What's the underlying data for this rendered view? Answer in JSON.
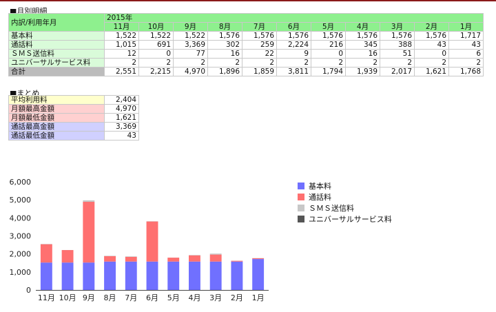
{
  "monthly": {
    "title": "■月別明細",
    "corner_label": "内訳/利用年月",
    "year_label": "2015年",
    "months": [
      "11月",
      "10月",
      "9月",
      "8月",
      "7月",
      "6月",
      "5月",
      "4月",
      "3月",
      "2月",
      "1月"
    ],
    "rows": [
      {
        "label": "基本料",
        "values": [
          "1,522",
          "1,522",
          "1,522",
          "1,576",
          "1,576",
          "1,576",
          "1,576",
          "1,576",
          "1,576",
          "1,576",
          "1,717"
        ]
      },
      {
        "label": "通話料",
        "values": [
          "1,015",
          "691",
          "3,369",
          "302",
          "259",
          "2,224",
          "216",
          "345",
          "388",
          "43",
          "43"
        ]
      },
      {
        "label": "ＳＭＳ送信料",
        "values": [
          "12",
          "0",
          "77",
          "16",
          "22",
          "9",
          "0",
          "16",
          "51",
          "0",
          "6"
        ]
      },
      {
        "label": "ユニバーサルサービス料",
        "values": [
          "2",
          "2",
          "2",
          "2",
          "2",
          "2",
          "2",
          "2",
          "2",
          "2",
          "2"
        ]
      }
    ],
    "total": {
      "label": "合計",
      "values": [
        "2,551",
        "2,215",
        "4,970",
        "1,896",
        "1,859",
        "3,811",
        "1,794",
        "1,939",
        "2,017",
        "1,621",
        "1,768"
      ]
    }
  },
  "summary": {
    "title": "■まとめ",
    "rows": [
      {
        "label": "平均利用料",
        "value": "2,404"
      },
      {
        "label": "月額最高金額",
        "value": "4,970"
      },
      {
        "label": "月額最低金額",
        "value": "1,621"
      },
      {
        "label": "通話最高金額",
        "value": "3,369"
      },
      {
        "label": "通話最低金額",
        "value": "43"
      }
    ]
  },
  "chart_data": {
    "type": "bar",
    "stacked": true,
    "categories": [
      "11月",
      "10月",
      "9月",
      "8月",
      "7月",
      "6月",
      "5月",
      "4月",
      "3月",
      "2月",
      "1月"
    ],
    "series": [
      {
        "name": "基本料",
        "color": "#7070ff",
        "values": [
          1522,
          1522,
          1522,
          1576,
          1576,
          1576,
          1576,
          1576,
          1576,
          1576,
          1717
        ]
      },
      {
        "name": "通話料",
        "color": "#ff7070",
        "values": [
          1015,
          691,
          3369,
          302,
          259,
          2224,
          216,
          345,
          388,
          43,
          43
        ]
      },
      {
        "name": "ＳＭＳ送信料",
        "color": "#c8c8c8",
        "values": [
          12,
          0,
          77,
          16,
          22,
          9,
          0,
          16,
          51,
          0,
          6
        ]
      },
      {
        "name": "ユニバーサルサービス料",
        "color": "#555555",
        "values": [
          2,
          2,
          2,
          2,
          2,
          2,
          2,
          2,
          2,
          2,
          2
        ]
      }
    ],
    "y_ticks": [
      "0",
      "1,000",
      "2,000",
      "3,000",
      "4,000",
      "5,000",
      "6,000"
    ],
    "ylim": [
      0,
      6000
    ],
    "legend_position": "right",
    "grid": false
  }
}
